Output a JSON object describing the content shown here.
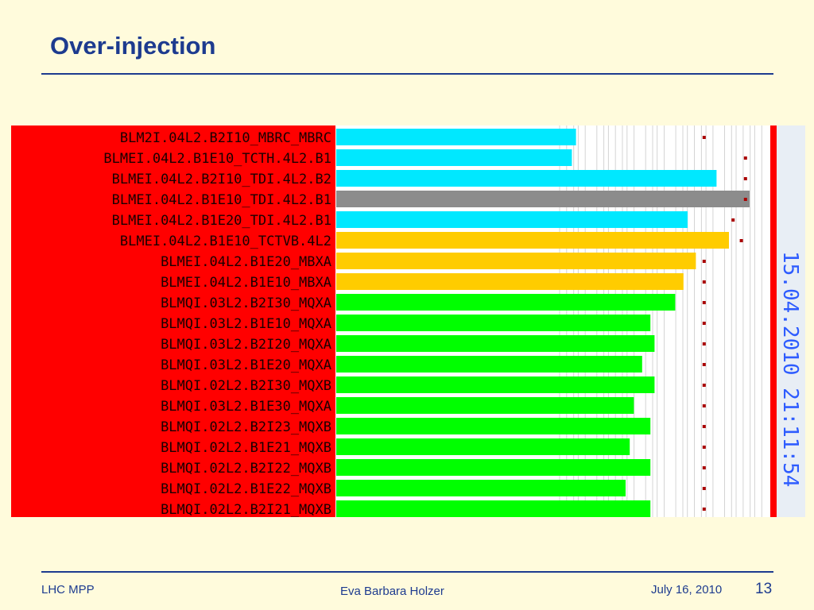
{
  "slide": {
    "title": "Over-injection",
    "footer_left": "LHC MPP",
    "footer_center": "Eva Barbara Holzer",
    "footer_date": "July 16, 2010",
    "page_number": "13"
  },
  "chart_data": {
    "type": "bar",
    "orientation": "horizontal",
    "timestamp": "15.04.2010 21:11:54",
    "categories": [
      "BLM2I.04L2.B2I10_MBRC_MBRC",
      "BLMEI.04L2.B1E10_TCTH.4L2.B1",
      "BLMEI.04L2.B2I10_TDI.4L2.B2",
      "BLMEI.04L2.B1E10_TDI.4L2.B1",
      "BLMEI.04L2.B1E20_TDI.4L2.B1",
      "BLMEI.04L2.B1E10_TCTVB.4L2",
      "BLMEI.04L2.B1E20_MBXA",
      "BLMEI.04L2.B1E10_MBXA",
      "BLMQI.03L2.B2I30_MQXA",
      "BLMQI.03L2.B1E10_MQXA",
      "BLMQI.03L2.B2I20_MQXA",
      "BLMQI.03L2.B1E20_MQXA",
      "BLMQI.02L2.B2I30_MQXB",
      "BLMQI.03L2.B1E30_MQXA",
      "BLMQI.02L2.B2I23_MQXB",
      "BLMQI.02L2.B1E21_MQXB",
      "BLMQI.02L2.B2I22_MQXB",
      "BLMQI.02L2.B1E22_MQXB",
      "BLMQI.02L2.B2I21_MQXB"
    ],
    "values": [
      0.58,
      0.57,
      0.92,
      1.0,
      0.85,
      0.95,
      0.87,
      0.84,
      0.82,
      0.76,
      0.77,
      0.74,
      0.77,
      0.72,
      0.76,
      0.71,
      0.76,
      0.7,
      0.76
    ],
    "thresholds": [
      0.89,
      0.99,
      0.99,
      0.99,
      0.96,
      0.98,
      0.89,
      0.89,
      0.89,
      0.89,
      0.89,
      0.89,
      0.89,
      0.89,
      0.89,
      0.89,
      0.89,
      0.89,
      0.89
    ],
    "bar_colors": [
      "#00e8ff",
      "#00e8ff",
      "#00e8ff",
      "#8c8c8c",
      "#00e8ff",
      "#ffcc00",
      "#ffcc00",
      "#ffcc00",
      "#00ff00",
      "#00ff00",
      "#00ff00",
      "#00ff00",
      "#00ff00",
      "#00ff00",
      "#00ff00",
      "#00ff00",
      "#00ff00",
      "#00ff00",
      "#00ff00"
    ],
    "colors": {
      "label_background": "#ff0000",
      "label_text": "#1a0000",
      "plot_background": "#ffffff",
      "threshold_marker": "#aa0000",
      "timestamp_text": "#2e5cff",
      "timestamp_background": "#e8eef5"
    },
    "xlim": [
      0,
      1.05
    ],
    "grid": true,
    "legend": "none"
  }
}
